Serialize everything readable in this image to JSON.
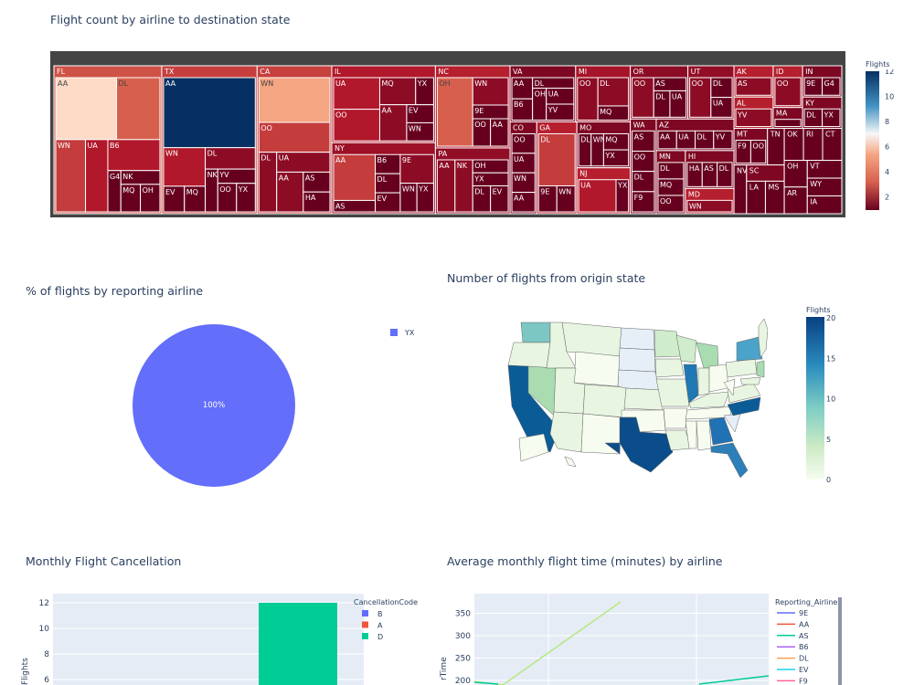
{
  "treemap": {
    "title": "Flight count by airline to destination state",
    "colorbar": {
      "title": "Flights",
      "ticks": [
        "12",
        "10",
        "8",
        "6",
        "4",
        "2"
      ]
    },
    "chart_data": {
      "type": "treemap",
      "title": "Flight count by airline to destination state",
      "states": [
        {
          "state": "FL",
          "airlines": [
            {
              "name": "AA",
              "value": 7
            },
            {
              "name": "DL",
              "value": 5
            },
            {
              "name": "WN",
              "value": 4
            },
            {
              "name": "UA",
              "value": 3
            },
            {
              "name": "B6",
              "value": 3
            },
            {
              "name": "G4",
              "value": 1
            },
            {
              "name": "NK",
              "value": 1
            },
            {
              "name": "MQ",
              "value": 1
            },
            {
              "name": "OH",
              "value": 1
            }
          ]
        },
        {
          "state": "TX",
          "airlines": [
            {
              "name": "AA",
              "value": 12
            },
            {
              "name": "WN",
              "value": 3
            },
            {
              "name": "EV",
              "value": 1
            },
            {
              "name": "MQ",
              "value": 1
            },
            {
              "name": "DL",
              "value": 2
            },
            {
              "name": "NK",
              "value": 1
            },
            {
              "name": "YV",
              "value": 1
            },
            {
              "name": "OO",
              "value": 1
            },
            {
              "name": "YX",
              "value": 1
            }
          ]
        },
        {
          "state": "CA",
          "airlines": [
            {
              "name": "WN",
              "value": 6
            },
            {
              "name": "OO",
              "value": 4
            },
            {
              "name": "DL",
              "value": 2
            },
            {
              "name": "UA",
              "value": 2
            },
            {
              "name": "AA",
              "value": 2
            },
            {
              "name": "AS",
              "value": 1
            },
            {
              "name": "HA",
              "value": 1
            }
          ]
        },
        {
          "state": "IL",
          "airlines": [
            {
              "name": "UA",
              "value": 3
            },
            {
              "name": "OO",
              "value": 3
            },
            {
              "name": "MQ",
              "value": 2
            },
            {
              "name": "YX",
              "value": 1
            },
            {
              "name": "AA",
              "value": 2
            },
            {
              "name": "EV",
              "value": 1
            },
            {
              "name": "WN",
              "value": 1
            }
          ]
        },
        {
          "state": "NY",
          "airlines": [
            {
              "name": "AA",
              "value": 4
            },
            {
              "name": "AS",
              "value": 1
            },
            {
              "name": "B6",
              "value": 1
            },
            {
              "name": "DL",
              "value": 1
            },
            {
              "name": "EV",
              "value": 1
            },
            {
              "name": "9E",
              "value": 2
            },
            {
              "name": "WN",
              "value": 1
            },
            {
              "name": "YX",
              "value": 1
            }
          ]
        },
        {
          "state": "NC",
          "airlines": [
            {
              "name": "OH",
              "value": 5
            },
            {
              "name": "WN",
              "value": 2
            },
            {
              "name": "9E",
              "value": 1
            },
            {
              "name": "OO",
              "value": 1
            },
            {
              "name": "AA",
              "value": 1
            }
          ]
        },
        {
          "state": "PA",
          "airlines": [
            {
              "name": "AA",
              "value": 2
            },
            {
              "name": "NK",
              "value": 2
            },
            {
              "name": "OH",
              "value": 1
            },
            {
              "name": "YX",
              "value": 1
            },
            {
              "name": "DL",
              "value": 1
            },
            {
              "name": "EV",
              "value": 1
            }
          ]
        },
        {
          "state": "VA",
          "airlines": [
            {
              "name": "AA",
              "value": 1
            },
            {
              "name": "B6",
              "value": 1
            },
            {
              "name": "DL",
              "value": 1
            },
            {
              "name": "OH",
              "value": 1
            },
            {
              "name": "UA",
              "value": 1
            },
            {
              "name": "YV",
              "value": 1
            }
          ]
        },
        {
          "state": "MI",
          "airlines": [
            {
              "name": "OO",
              "value": 2
            },
            {
              "name": "DL",
              "value": 2
            },
            {
              "name": "MQ",
              "value": 1
            }
          ]
        },
        {
          "state": "CO",
          "airlines": [
            {
              "name": "OO",
              "value": 1
            },
            {
              "name": "UA",
              "value": 1
            },
            {
              "name": "WN",
              "value": 1
            },
            {
              "name": "AA",
              "value": 1
            }
          ]
        },
        {
          "state": "GA",
          "airlines": [
            {
              "name": "DL",
              "value": 4
            },
            {
              "name": "9E",
              "value": 1
            },
            {
              "name": "WN",
              "value": 1
            }
          ]
        },
        {
          "state": "MO",
          "airlines": [
            {
              "name": "DL",
              "value": 1
            },
            {
              "name": "WN",
              "value": 1
            },
            {
              "name": "MQ",
              "value": 1
            },
            {
              "name": "YX",
              "value": 1
            }
          ]
        },
        {
          "state": "NJ",
          "airlines": [
            {
              "name": "UA",
              "value": 3
            },
            {
              "name": "YX",
              "value": 1
            }
          ]
        },
        {
          "state": "OR",
          "airlines": [
            {
              "name": "OO",
              "value": 2
            },
            {
              "name": "AS",
              "value": 1
            },
            {
              "name": "DL",
              "value": 1
            },
            {
              "name": "UA",
              "value": 1
            }
          ]
        },
        {
          "state": "UT",
          "airlines": [
            {
              "name": "OO",
              "value": 2
            },
            {
              "name": "DL",
              "value": 1
            },
            {
              "name": "UA",
              "value": 1
            }
          ]
        },
        {
          "state": "WA",
          "airlines": [
            {
              "name": "AS",
              "value": 1
            },
            {
              "name": "OO",
              "value": 1
            },
            {
              "name": "DL",
              "value": 1
            },
            {
              "name": "F9",
              "value": 1
            }
          ]
        },
        {
          "state": "AZ",
          "airlines": [
            {
              "name": "AA",
              "value": 1
            },
            {
              "name": "UA",
              "value": 1
            },
            {
              "name": "DL",
              "value": 1
            },
            {
              "name": "YV",
              "value": 1
            }
          ]
        },
        {
          "state": "MN",
          "airlines": [
            {
              "name": "DL",
              "value": 1
            },
            {
              "name": "MQ",
              "value": 1
            },
            {
              "name": "OO",
              "value": 1
            }
          ]
        },
        {
          "state": "HI",
          "airlines": [
            {
              "name": "HA",
              "value": 1
            },
            {
              "name": "AS",
              "value": 1
            },
            {
              "name": "DL",
              "value": 1
            }
          ]
        },
        {
          "state": "MD",
          "airlines": [
            {
              "name": "WN",
              "value": 2
            }
          ]
        },
        {
          "state": "AK",
          "airlines": [
            {
              "name": "AS",
              "value": 2
            }
          ]
        },
        {
          "state": "AL",
          "airlines": [
            {
              "name": "YV",
              "value": 2
            }
          ]
        },
        {
          "state": "ID",
          "airlines": [
            {
              "name": "OO",
              "value": 2
            }
          ]
        },
        {
          "state": "MA",
          "airlines": [
            {
              "name": "YX",
              "value": 1
            }
          ]
        },
        {
          "state": "IN",
          "airlines": [
            {
              "name": "9E",
              "value": 1
            },
            {
              "name": "G4",
              "value": 1
            }
          ]
        },
        {
          "state": "KY",
          "airlines": [
            {
              "name": "DL",
              "value": 1
            },
            {
              "name": "YX",
              "value": 1
            }
          ]
        },
        {
          "state": "MT",
          "airlines": [
            {
              "name": "F9",
              "value": 1
            },
            {
              "name": "OO",
              "value": 1
            }
          ]
        },
        {
          "state": "TN",
          "airlines": []
        },
        {
          "state": "NV",
          "airlines": []
        },
        {
          "state": "SC",
          "airlines": [
            {
              "name": "OH",
              "value": 1
            }
          ]
        },
        {
          "state": "LA",
          "airlines": []
        },
        {
          "state": "MS",
          "airlines": []
        },
        {
          "state": "OK",
          "airlines": []
        },
        {
          "state": "RI",
          "airlines": []
        },
        {
          "state": "CT",
          "airlines": []
        },
        {
          "state": "OH",
          "airlines": []
        },
        {
          "state": "AR",
          "airlines": []
        },
        {
          "state": "VT",
          "airlines": []
        },
        {
          "state": "WY",
          "airlines": []
        },
        {
          "state": "IA",
          "airlines": []
        }
      ]
    }
  },
  "pie": {
    "title": "% of flights by reporting airline",
    "legend": [
      {
        "name": "YX",
        "color": "#636efa"
      }
    ],
    "chart_data": {
      "type": "pie",
      "labels": [
        "YX"
      ],
      "values": [
        100
      ],
      "text": [
        "100%"
      ]
    }
  },
  "map": {
    "title": "Number of flights from origin state",
    "colorbar": {
      "title": "Flights",
      "ticks": [
        "20",
        "15",
        "10",
        "5",
        "0"
      ]
    },
    "chart_data": {
      "type": "choropleth",
      "range": [
        0,
        20
      ]
    }
  },
  "bar": {
    "title": "Monthly Flight Cancellation",
    "ylabel": "Flights",
    "legend_title": "CancellationCode",
    "legend": [
      {
        "name": "B",
        "color": "#636efa"
      },
      {
        "name": "A",
        "color": "#ef553b"
      },
      {
        "name": "D",
        "color": "#00cc96"
      }
    ],
    "chart_data": {
      "type": "bar",
      "yticks": [
        12,
        10,
        8,
        6
      ],
      "series": [
        {
          "name": "D",
          "values": [
            12
          ]
        }
      ]
    }
  },
  "line": {
    "title": "Average monthly flight time (minutes) by airline",
    "ylabel": "rTime",
    "legend_title": "Reporting_Airline",
    "legend": [
      {
        "name": "9E",
        "color": "#636efa"
      },
      {
        "name": "AA",
        "color": "#ef553b"
      },
      {
        "name": "AS",
        "color": "#00cc96"
      },
      {
        "name": "B6",
        "color": "#ab63fa"
      },
      {
        "name": "DL",
        "color": "#ffa15a"
      },
      {
        "name": "EV",
        "color": "#19d3f3"
      },
      {
        "name": "F9",
        "color": "#ff6692"
      }
    ],
    "chart_data": {
      "type": "line",
      "yticks": [
        350,
        300,
        250,
        200
      ]
    }
  }
}
